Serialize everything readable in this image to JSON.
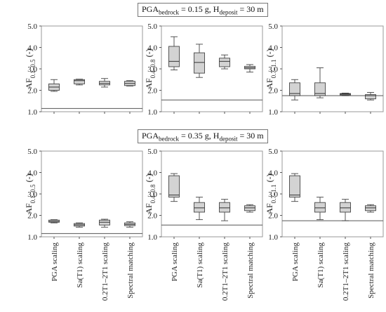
{
  "headers": [
    {
      "pga": "PGA",
      "pga_sub": "bedrock",
      "pga_val": " = 0.15 g, H",
      "h_sub": "deposit",
      "h_val": " = 30 m"
    },
    {
      "pga": "PGA",
      "pga_sub": "bedrock",
      "pga_val": " = 0.35 g, H",
      "h_sub": "deposit",
      "h_val": " = 30 m"
    }
  ],
  "x_labels": [
    "PGA scaling",
    "Sa(T1) scaling",
    "0.2T1–2T1 scaling",
    "Spectral matching"
  ],
  "chart_data": [
    {
      "type": "box",
      "row": 0,
      "col": 0,
      "ylabel": "AF0.1–0.5 (-)",
      "ylabel_main": "AF",
      "ylabel_sub": "0.1–0.5",
      "ylabel_unit": " (-)",
      "ylim": [
        1.0,
        5.0
      ],
      "yticks": [
        "1.0",
        "2.0",
        "3.0",
        "4.0",
        "5.0"
      ],
      "categories": [
        "PGA scaling",
        "Sa(T1) scaling",
        "0.2T1–2T1 scaling",
        "Spectral matching"
      ],
      "reference_line": 1.15,
      "boxes": [
        {
          "min": 1.95,
          "q1": 2.0,
          "median": 2.15,
          "q3": 2.3,
          "max": 2.5
        },
        {
          "min": 2.25,
          "q1": 2.3,
          "median": 2.45,
          "q3": 2.5,
          "max": 2.52
        },
        {
          "min": 2.15,
          "q1": 2.25,
          "median": 2.32,
          "q3": 2.42,
          "max": 2.55
        },
        {
          "min": 2.2,
          "q1": 2.22,
          "median": 2.32,
          "q3": 2.42,
          "max": 2.45
        }
      ]
    },
    {
      "type": "box",
      "row": 0,
      "col": 1,
      "ylabel": "AF0.4–0.8 (-)",
      "ylabel_main": "AF",
      "ylabel_sub": "0.4–0.8",
      "ylabel_unit": " (-)",
      "ylim": [
        1.0,
        5.0
      ],
      "yticks": [
        "1.0",
        "2.0",
        "3.0",
        "4.0",
        "5.0"
      ],
      "categories": [
        "PGA scaling",
        "Sa(T1) scaling",
        "0.2T1–2T1 scaling",
        "Spectral matching"
      ],
      "reference_line": 1.55,
      "boxes": [
        {
          "min": 2.95,
          "q1": 3.1,
          "median": 3.35,
          "q3": 4.05,
          "max": 4.5
        },
        {
          "min": 2.6,
          "q1": 2.8,
          "median": 3.3,
          "q3": 3.75,
          "max": 4.15
        },
        {
          "min": 3.0,
          "q1": 3.1,
          "median": 3.35,
          "q3": 3.5,
          "max": 3.65
        },
        {
          "min": 2.85,
          "q1": 3.0,
          "median": 3.05,
          "q3": 3.12,
          "max": 3.2
        }
      ]
    },
    {
      "type": "box",
      "row": 0,
      "col": 2,
      "ylabel": "AF0.7–1.1 (-)",
      "ylabel_main": "AF",
      "ylabel_sub": "0.7–1.1",
      "ylabel_unit": " (-)",
      "ylim": [
        1.0,
        5.0
      ],
      "yticks": [
        "1.0",
        "2.0",
        "3.0",
        "4.0",
        "5.0"
      ],
      "categories": [
        "PGA scaling",
        "Sa(T1) scaling",
        "0.2T1–2T1 scaling",
        "Spectral matching"
      ],
      "reference_line": 1.75,
      "boxes": [
        {
          "min": 1.55,
          "q1": 1.75,
          "median": 1.85,
          "q3": 2.35,
          "max": 2.5
        },
        {
          "min": 1.65,
          "q1": 1.75,
          "median": 1.85,
          "q3": 2.35,
          "max": 3.05
        },
        {
          "min": 1.75,
          "q1": 1.78,
          "median": 1.82,
          "q3": 1.85,
          "max": 1.87
        },
        {
          "min": 1.55,
          "q1": 1.6,
          "median": 1.75,
          "q3": 1.8,
          "max": 1.9
        }
      ]
    },
    {
      "type": "box",
      "row": 1,
      "col": 0,
      "ylabel": "AF0.1–0.5 (-)",
      "ylabel_main": "AF",
      "ylabel_sub": "0.1–0.5",
      "ylabel_unit": " (-)",
      "ylim": [
        1.0,
        5.0
      ],
      "yticks": [
        "1.0",
        "2.0",
        "3.0",
        "4.0",
        "5.0"
      ],
      "categories": [
        "PGA scaling",
        "Sa(T1) scaling",
        "0.2T1–2T1 scaling",
        "Spectral matching"
      ],
      "reference_line": 1.15,
      "boxes": [
        {
          "min": 1.65,
          "q1": 1.68,
          "median": 1.72,
          "q3": 1.78,
          "max": 1.8
        },
        {
          "min": 1.45,
          "q1": 1.5,
          "median": 1.56,
          "q3": 1.62,
          "max": 1.65
        },
        {
          "min": 1.45,
          "q1": 1.55,
          "median": 1.68,
          "q3": 1.78,
          "max": 1.82
        },
        {
          "min": 1.45,
          "q1": 1.52,
          "median": 1.58,
          "q3": 1.65,
          "max": 1.7
        }
      ]
    },
    {
      "type": "box",
      "row": 1,
      "col": 1,
      "ylabel": "AF0.4–0.8 (-)",
      "ylabel_main": "AF",
      "ylabel_sub": "0.4–0.8",
      "ylabel_unit": " (-)",
      "ylim": [
        1.0,
        5.0
      ],
      "yticks": [
        "1.0",
        "2.0",
        "3.0",
        "4.0",
        "5.0"
      ],
      "categories": [
        "PGA scaling",
        "Sa(T1) scaling",
        "0.2T1–2T1 scaling",
        "Spectral matching"
      ],
      "reference_line": 1.55,
      "boxes": [
        {
          "min": 2.65,
          "q1": 2.85,
          "median": 2.95,
          "q3": 3.85,
          "max": 3.95
        },
        {
          "min": 1.8,
          "q1": 2.15,
          "median": 2.35,
          "q3": 2.6,
          "max": 2.85
        },
        {
          "min": 1.75,
          "q1": 2.15,
          "median": 2.35,
          "q3": 2.6,
          "max": 2.75
        },
        {
          "min": 2.15,
          "q1": 2.22,
          "median": 2.35,
          "q3": 2.45,
          "max": 2.5
        }
      ]
    },
    {
      "type": "box",
      "row": 1,
      "col": 2,
      "ylabel": "AF0.7–1.1 (-)",
      "ylabel_main": "AF",
      "ylabel_sub": "0.7–1.1",
      "ylabel_unit": " (-)",
      "ylim": [
        1.0,
        5.0
      ],
      "yticks": [
        "1.0",
        "2.0",
        "3.0",
        "4.0",
        "5.0"
      ],
      "categories": [
        "PGA scaling",
        "Sa(T1) scaling",
        "0.2T1–2T1 scaling",
        "Spectral matching"
      ],
      "reference_line": 1.75,
      "boxes": [
        {
          "min": 2.65,
          "q1": 2.85,
          "median": 2.95,
          "q3": 3.85,
          "max": 3.95
        },
        {
          "min": 1.8,
          "q1": 2.15,
          "median": 2.35,
          "q3": 2.6,
          "max": 2.85
        },
        {
          "min": 1.75,
          "q1": 2.15,
          "median": 2.35,
          "q3": 2.6,
          "max": 2.75
        },
        {
          "min": 2.15,
          "q1": 2.22,
          "median": 2.35,
          "q3": 2.45,
          "max": 2.5
        }
      ]
    }
  ]
}
